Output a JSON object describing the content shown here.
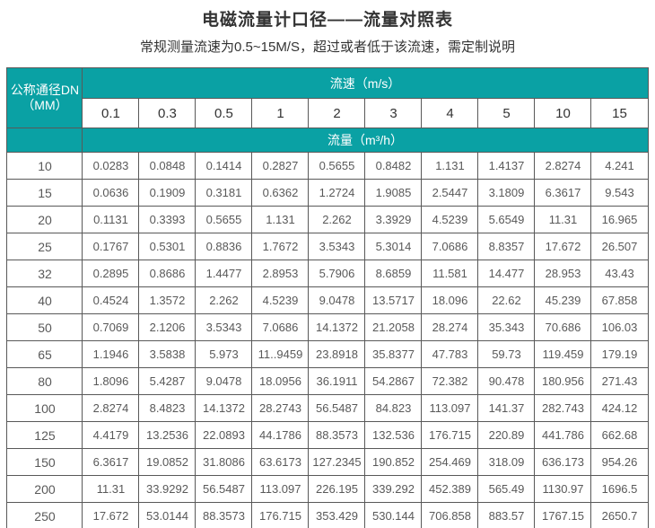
{
  "page": {
    "title": "电磁流量计口径——流量对照表",
    "subtitle": "常规测量流速为0.5~15M/S，超过或者低于该流速，需定制说明"
  },
  "colors": {
    "header_teal": "#0aa1a4",
    "grid_border": "#595959",
    "title_text": "#333333",
    "data_text": "#595959"
  },
  "table": {
    "corner_header_line1": "公称通径DN",
    "corner_header_line2": "（MM）",
    "velocity_header": "流速（m/s）",
    "flow_header": "流量（m³/h）",
    "velocities": [
      "0.1",
      "0.3",
      "0.5",
      "1",
      "2",
      "3",
      "4",
      "5",
      "10",
      "15"
    ],
    "rows": [
      {
        "dn": "10",
        "values": [
          "0.0283",
          "0.0848",
          "0.1414",
          "0.2827",
          "0.5655",
          "0.8482",
          "1.131",
          "1.4137",
          "2.8274",
          "4.241"
        ]
      },
      {
        "dn": "15",
        "values": [
          "0.0636",
          "0.1909",
          "0.3181",
          "0.6362",
          "1.2724",
          "1.9085",
          "2.5447",
          "3.1809",
          "6.3617",
          "9.543"
        ]
      },
      {
        "dn": "20",
        "values": [
          "0.1131",
          "0.3393",
          "0.5655",
          "1.131",
          "2.262",
          "3.3929",
          "4.5239",
          "5.6549",
          "11.31",
          "16.965"
        ]
      },
      {
        "dn": "25",
        "values": [
          "0.1767",
          "0.5301",
          "0.8836",
          "1.7672",
          "3.5343",
          "5.3014",
          "7.0686",
          "8.8357",
          "17.672",
          "26.507"
        ]
      },
      {
        "dn": "32",
        "values": [
          "0.2895",
          "0.8686",
          "1.4477",
          "2.8953",
          "5.7906",
          "8.6859",
          "11.581",
          "14.477",
          "28.953",
          "43.43"
        ]
      },
      {
        "dn": "40",
        "values": [
          "0.4524",
          "1.3572",
          "2.262",
          "4.5239",
          "9.0478",
          "13.5717",
          "18.096",
          "22.62",
          "45.239",
          "67.858"
        ]
      },
      {
        "dn": "50",
        "values": [
          "0.7069",
          "2.1206",
          "3.5343",
          "7.0686",
          "14.1372",
          "21.2058",
          "28.274",
          "35.343",
          "70.686",
          "106.03"
        ]
      },
      {
        "dn": "65",
        "values": [
          "1.1946",
          "3.5838",
          "5.973",
          "11..9459",
          "23.8918",
          "35.8377",
          "47.783",
          "59.73",
          "119.459",
          "179.19"
        ]
      },
      {
        "dn": "80",
        "values": [
          "1.8096",
          "5.4287",
          "9.0478",
          "18.0956",
          "36.1911",
          "54.2867",
          "72.382",
          "90.478",
          "180.956",
          "271.43"
        ]
      },
      {
        "dn": "100",
        "values": [
          "2.8274",
          "8.4823",
          "14.1372",
          "28.2743",
          "56.5487",
          "84.823",
          "113.097",
          "141.37",
          "282.743",
          "424.12"
        ]
      },
      {
        "dn": "125",
        "values": [
          "4.4179",
          "13.2536",
          "22.0893",
          "44.1786",
          "88.3573",
          "132.536",
          "176.715",
          "220.89",
          "441.786",
          "662.68"
        ]
      },
      {
        "dn": "150",
        "values": [
          "6.3617",
          "19.0852",
          "31.8086",
          "63.6173",
          "127.2345",
          "190.852",
          "254.469",
          "318.09",
          "636.173",
          "954.26"
        ]
      },
      {
        "dn": "200",
        "values": [
          "11.31",
          "33.9292",
          "56.5487",
          "113.097",
          "226.195",
          "339.292",
          "452.389",
          "565.49",
          "1130.97",
          "1696.5"
        ]
      },
      {
        "dn": "250",
        "values": [
          "17.672",
          "53.0144",
          "88.3573",
          "176.715",
          "353.429",
          "530.144",
          "706.858",
          "883.57",
          "1767.15",
          "2650.7"
        ]
      }
    ]
  }
}
